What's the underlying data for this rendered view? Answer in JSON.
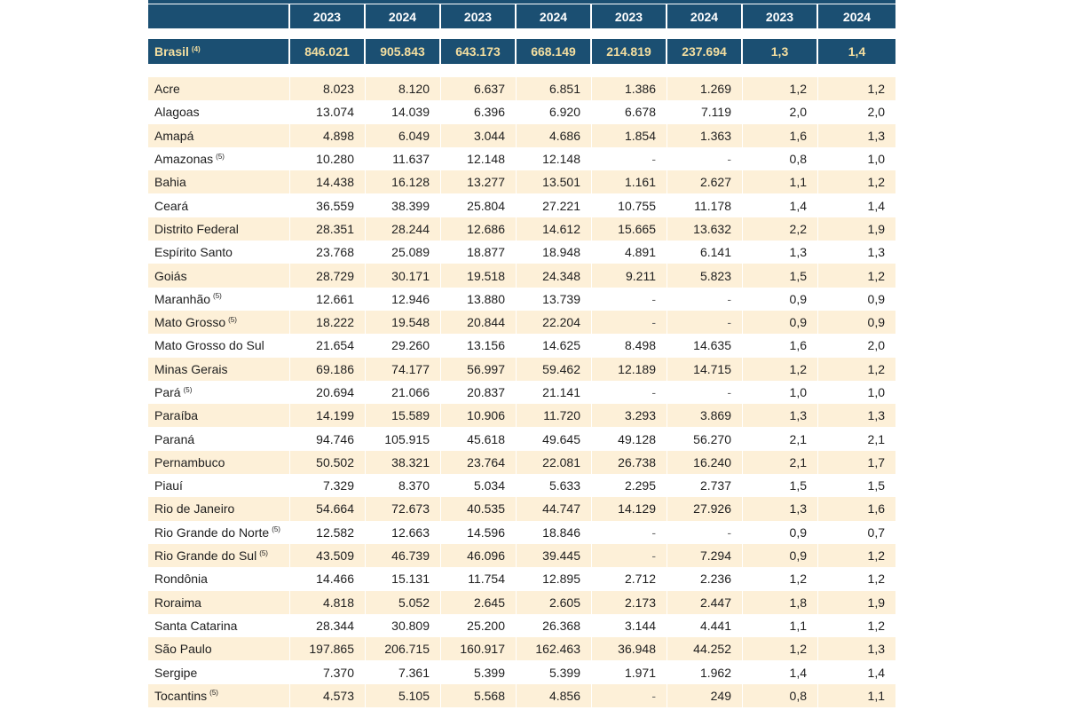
{
  "header": {
    "years": [
      "2023",
      "2024",
      "2023",
      "2024",
      "2023",
      "2024",
      "2023",
      "2024"
    ]
  },
  "brasil": {
    "name": "Brasil",
    "note": "(4)",
    "values": [
      "846.021",
      "905.843",
      "643.173",
      "668.149",
      "214.819",
      "237.694",
      "1,3",
      "1,4"
    ]
  },
  "rows": [
    {
      "name": "Acre",
      "note": "",
      "values": [
        "8.023",
        "8.120",
        "6.637",
        "6.851",
        "1.386",
        "1.269",
        "1,2",
        "1,2"
      ]
    },
    {
      "name": "Alagoas",
      "note": "",
      "values": [
        "13.074",
        "14.039",
        "6.396",
        "6.920",
        "6.678",
        "7.119",
        "2,0",
        "2,0"
      ]
    },
    {
      "name": "Amapá",
      "note": "",
      "values": [
        "4.898",
        "6.049",
        "3.044",
        "4.686",
        "1.854",
        "1.363",
        "1,6",
        "1,3"
      ]
    },
    {
      "name": "Amazonas",
      "note": "(5)",
      "values": [
        "10.280",
        "11.637",
        "12.148",
        "12.148",
        "-",
        "-",
        "0,8",
        "1,0"
      ]
    },
    {
      "name": "Bahia",
      "note": "",
      "values": [
        "14.438",
        "16.128",
        "13.277",
        "13.501",
        "1.161",
        "2.627",
        "1,1",
        "1,2"
      ]
    },
    {
      "name": "Ceará",
      "note": "",
      "values": [
        "36.559",
        "38.399",
        "25.804",
        "27.221",
        "10.755",
        "11.178",
        "1,4",
        "1,4"
      ]
    },
    {
      "name": "Distrito Federal",
      "note": "",
      "values": [
        "28.351",
        "28.244",
        "12.686",
        "14.612",
        "15.665",
        "13.632",
        "2,2",
        "1,9"
      ]
    },
    {
      "name": "Espírito Santo",
      "note": "",
      "values": [
        "23.768",
        "25.089",
        "18.877",
        "18.948",
        "4.891",
        "6.141",
        "1,3",
        "1,3"
      ]
    },
    {
      "name": "Goiás",
      "note": "",
      "values": [
        "28.729",
        "30.171",
        "19.518",
        "24.348",
        "9.211",
        "5.823",
        "1,5",
        "1,2"
      ]
    },
    {
      "name": "Maranhão",
      "note": "(5)",
      "values": [
        "12.661",
        "12.946",
        "13.880",
        "13.739",
        "-",
        "-",
        "0,9",
        "0,9"
      ]
    },
    {
      "name": "Mato Grosso",
      "note": "(5)",
      "values": [
        "18.222",
        "19.548",
        "20.844",
        "22.204",
        "-",
        "-",
        "0,9",
        "0,9"
      ]
    },
    {
      "name": "Mato Grosso do Sul",
      "note": "",
      "values": [
        "21.654",
        "29.260",
        "13.156",
        "14.625",
        "8.498",
        "14.635",
        "1,6",
        "2,0"
      ]
    },
    {
      "name": "Minas Gerais",
      "note": "",
      "values": [
        "69.186",
        "74.177",
        "56.997",
        "59.462",
        "12.189",
        "14.715",
        "1,2",
        "1,2"
      ]
    },
    {
      "name": "Pará",
      "note": "(5)",
      "values": [
        "20.694",
        "21.066",
        "20.837",
        "21.141",
        "-",
        "-",
        "1,0",
        "1,0"
      ]
    },
    {
      "name": "Paraíba",
      "note": "",
      "values": [
        "14.199",
        "15.589",
        "10.906",
        "11.720",
        "3.293",
        "3.869",
        "1,3",
        "1,3"
      ]
    },
    {
      "name": "Paraná",
      "note": "",
      "values": [
        "94.746",
        "105.915",
        "45.618",
        "49.645",
        "49.128",
        "56.270",
        "2,1",
        "2,1"
      ]
    },
    {
      "name": "Pernambuco",
      "note": "",
      "values": [
        "50.502",
        "38.321",
        "23.764",
        "22.081",
        "26.738",
        "16.240",
        "2,1",
        "1,7"
      ]
    },
    {
      "name": "Piauí",
      "note": "",
      "values": [
        "7.329",
        "8.370",
        "5.034",
        "5.633",
        "2.295",
        "2.737",
        "1,5",
        "1,5"
      ]
    },
    {
      "name": "Rio de Janeiro",
      "note": "",
      "values": [
        "54.664",
        "72.673",
        "40.535",
        "44.747",
        "14.129",
        "27.926",
        "1,3",
        "1,6"
      ]
    },
    {
      "name": "Rio Grande do Norte",
      "note": "(5)",
      "values": [
        "12.582",
        "12.663",
        "14.596",
        "18.846",
        "-",
        "-",
        "0,9",
        "0,7"
      ]
    },
    {
      "name": "Rio Grande do Sul",
      "note": "(5)",
      "values": [
        "43.509",
        "46.739",
        "46.096",
        "39.445",
        "-",
        "7.294",
        "0,9",
        "1,2"
      ]
    },
    {
      "name": "Rondônia",
      "note": "",
      "values": [
        "14.466",
        "15.131",
        "11.754",
        "12.895",
        "2.712",
        "2.236",
        "1,2",
        "1,2"
      ]
    },
    {
      "name": "Roraima",
      "note": "",
      "values": [
        "4.818",
        "5.052",
        "2.645",
        "2.605",
        "2.173",
        "2.447",
        "1,8",
        "1,9"
      ]
    },
    {
      "name": "Santa Catarina",
      "note": "",
      "values": [
        "28.344",
        "30.809",
        "25.200",
        "26.368",
        "3.144",
        "4.441",
        "1,1",
        "1,2"
      ]
    },
    {
      "name": "São Paulo",
      "note": "",
      "values": [
        "197.865",
        "206.715",
        "160.917",
        "162.463",
        "36.948",
        "44.252",
        "1,2",
        "1,3"
      ]
    },
    {
      "name": "Sergipe",
      "note": "",
      "values": [
        "7.370",
        "7.361",
        "5.399",
        "5.399",
        "1.971",
        "1.962",
        "1,4",
        "1,4"
      ]
    },
    {
      "name": "Tocantins",
      "note": "(5)",
      "values": [
        "4.573",
        "5.105",
        "5.568",
        "4.856",
        "-",
        "249",
        "0,8",
        "1,1"
      ]
    }
  ]
}
